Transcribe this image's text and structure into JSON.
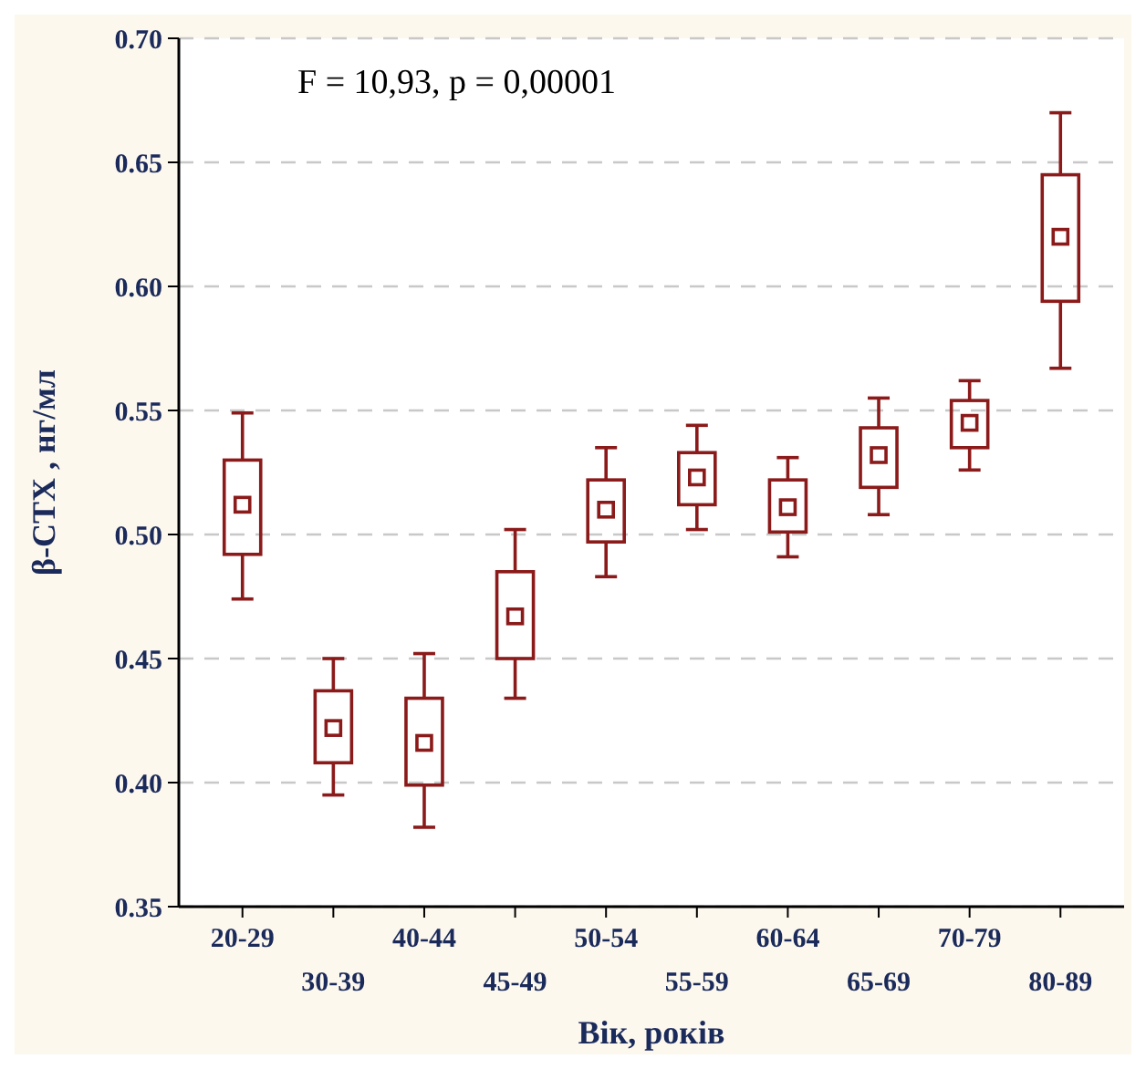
{
  "chart_data": {
    "type": "box",
    "xlabel": "Вік, років",
    "ylabel": "β-CTX , нг/мл",
    "annotations": [
      "F = 10,93, p = 0,00001"
    ],
    "categories": [
      "20-29",
      "30-39",
      "40-44",
      "45-49",
      "50-54",
      "55-59",
      "60-64",
      "65-69",
      "70-79",
      "80-89"
    ],
    "boxes": [
      {
        "low": 0.474,
        "q1": 0.492,
        "median": 0.512,
        "q3": 0.53,
        "high": 0.549
      },
      {
        "low": 0.395,
        "q1": 0.408,
        "median": 0.422,
        "q3": 0.437,
        "high": 0.45
      },
      {
        "low": 0.382,
        "q1": 0.399,
        "median": 0.416,
        "q3": 0.434,
        "high": 0.452
      },
      {
        "low": 0.434,
        "q1": 0.45,
        "median": 0.467,
        "q3": 0.485,
        "high": 0.502
      },
      {
        "low": 0.483,
        "q1": 0.497,
        "median": 0.51,
        "q3": 0.522,
        "high": 0.535
      },
      {
        "low": 0.502,
        "q1": 0.512,
        "median": 0.523,
        "q3": 0.533,
        "high": 0.544
      },
      {
        "low": 0.491,
        "q1": 0.501,
        "median": 0.511,
        "q3": 0.522,
        "high": 0.531
      },
      {
        "low": 0.508,
        "q1": 0.519,
        "median": 0.532,
        "q3": 0.543,
        "high": 0.555
      },
      {
        "low": 0.526,
        "q1": 0.535,
        "median": 0.545,
        "q3": 0.554,
        "high": 0.562
      },
      {
        "low": 0.567,
        "q1": 0.594,
        "median": 0.62,
        "q3": 0.645,
        "high": 0.67
      }
    ],
    "color": "#8b1a1a",
    "ylim": [
      0.35,
      0.7
    ],
    "yticks": [
      {
        "value": 0.35,
        "label": "0.35"
      },
      {
        "value": 0.4,
        "label": "0.40"
      },
      {
        "value": 0.45,
        "label": "0.45"
      },
      {
        "value": 0.5,
        "label": "0.50"
      },
      {
        "value": 0.55,
        "label": "0.55"
      },
      {
        "value": 0.6,
        "label": "0.60"
      },
      {
        "value": 0.65,
        "label": "0.65"
      },
      {
        "value": 0.7,
        "label": "0.70"
      }
    ],
    "grid": "y"
  }
}
